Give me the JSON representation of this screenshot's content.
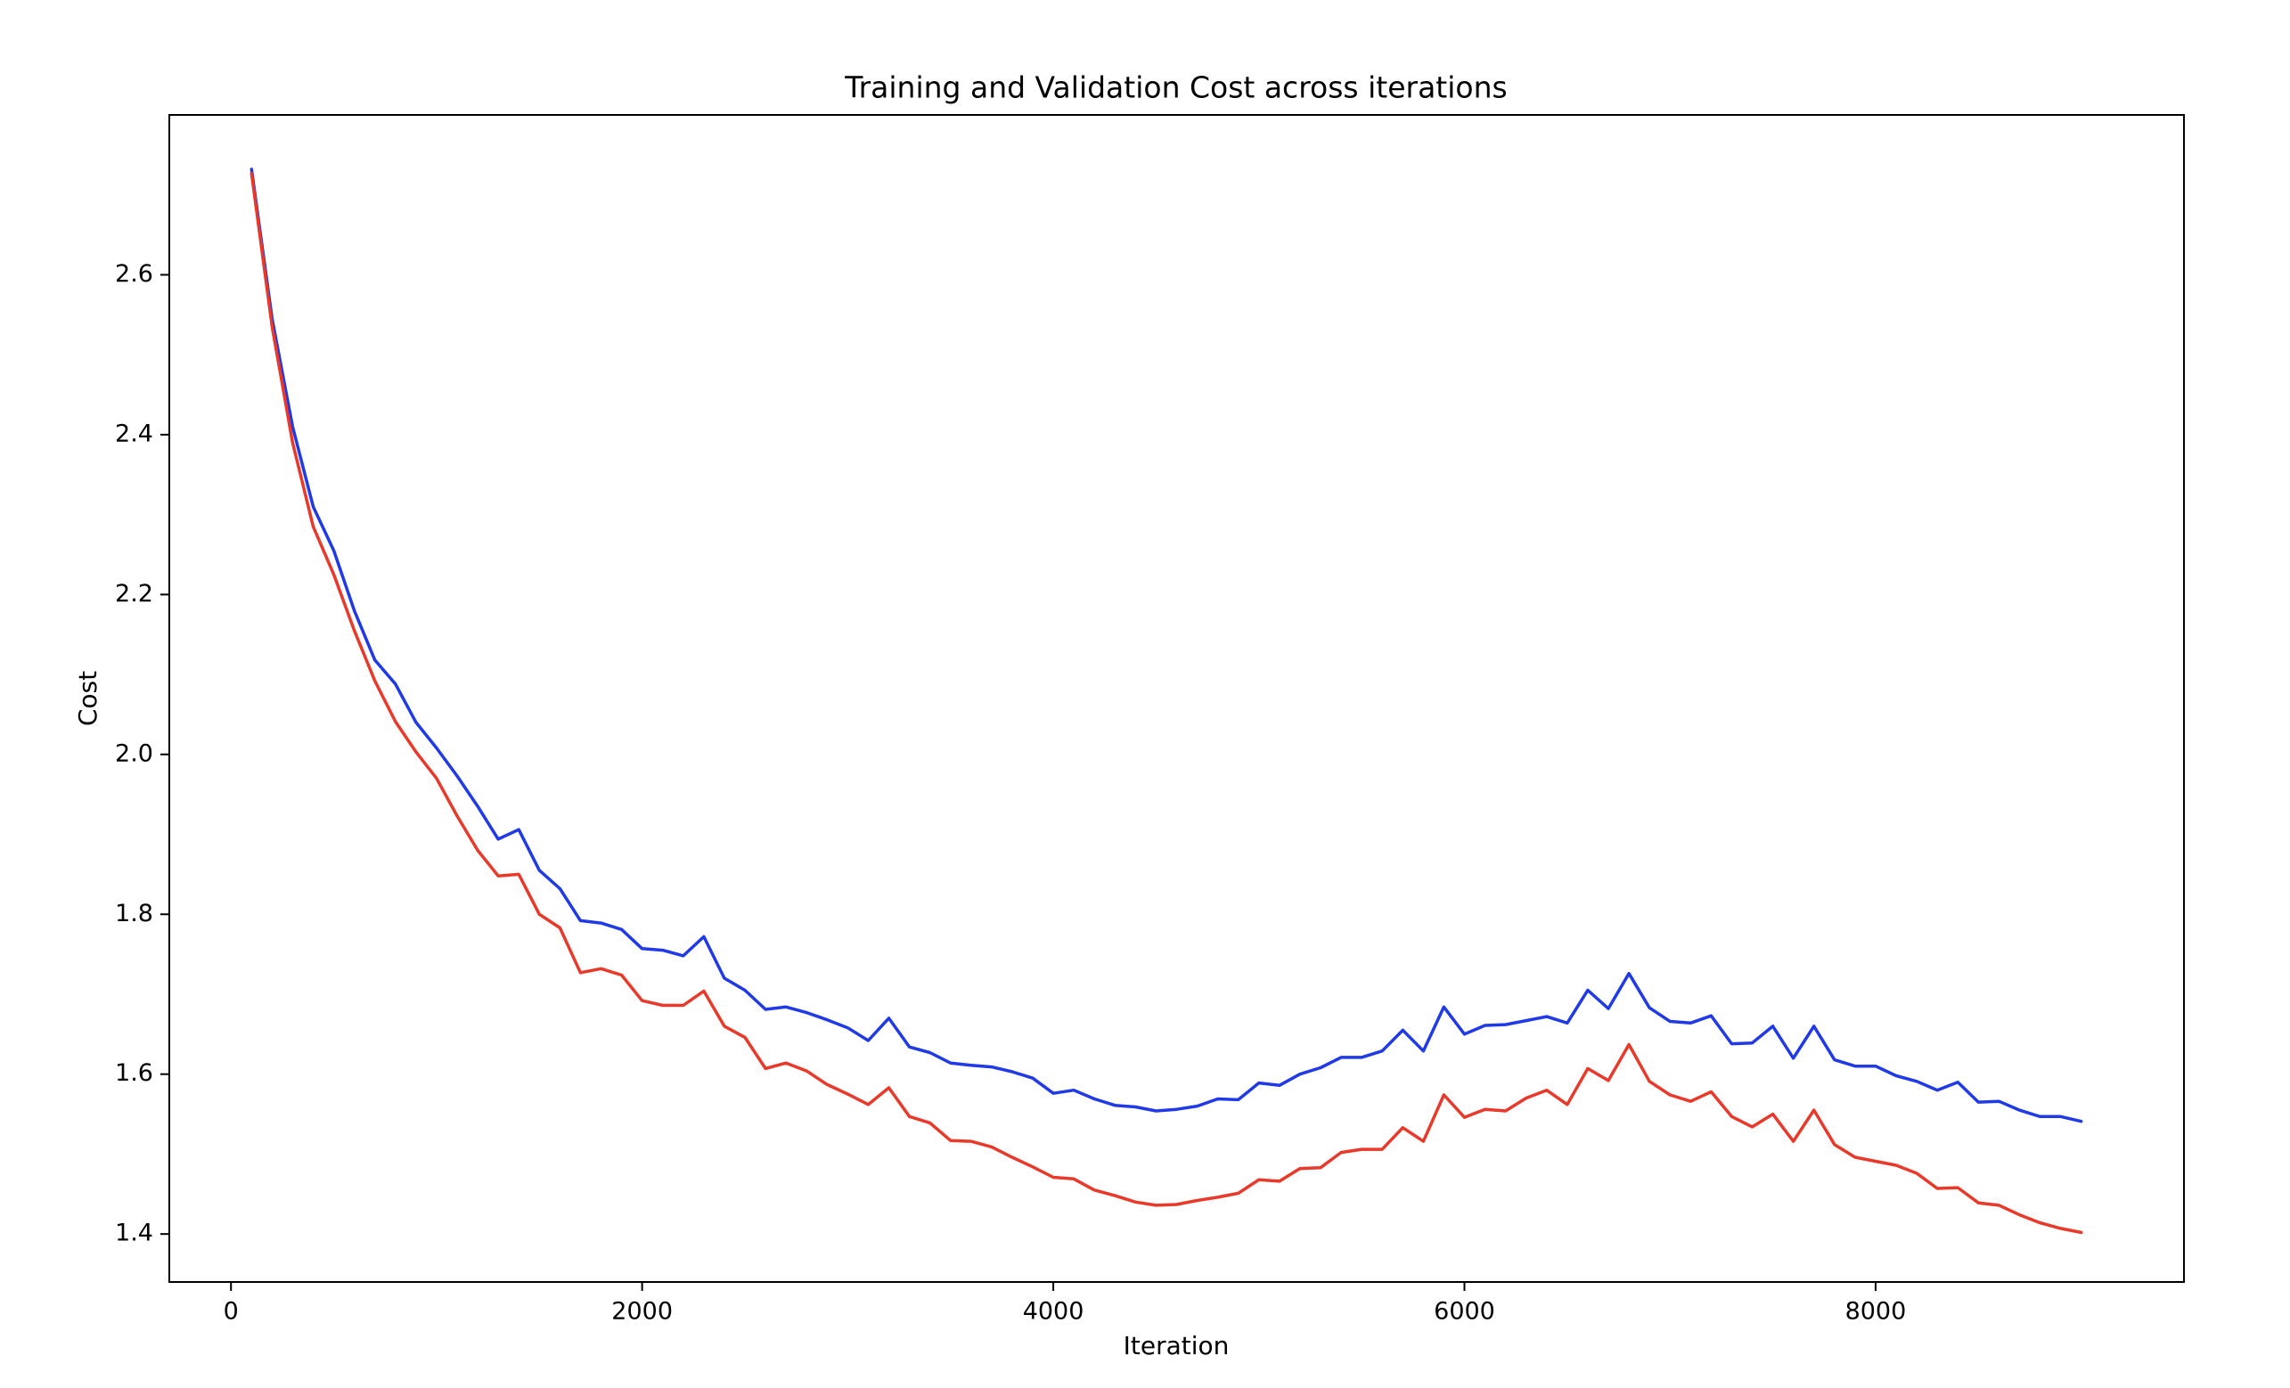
{
  "chart_data": {
    "type": "line",
    "title": "Training and Validation Cost across iterations",
    "xlabel": "Iteration",
    "ylabel": "Cost",
    "xlim": [
      -300,
      9500
    ],
    "ylim": [
      1.34,
      2.8
    ],
    "xticks": [
      0,
      2000,
      4000,
      6000,
      8000
    ],
    "yticks": [
      1.4,
      1.6,
      1.8,
      2.0,
      2.2,
      2.4,
      2.6
    ],
    "xtick_labels": [
      "0",
      "2000",
      "4000",
      "6000",
      "8000"
    ],
    "ytick_labels": [
      "1.4",
      "1.6",
      "1.8",
      "2.0",
      "2.2",
      "2.4",
      "2.6"
    ],
    "grid": false,
    "legend": false,
    "x": [
      100,
      200,
      300,
      400,
      500,
      600,
      700,
      800,
      900,
      1000,
      1100,
      1200,
      1300,
      1400,
      1500,
      1600,
      1700,
      1800,
      1900,
      2000,
      2100,
      2200,
      2300,
      2400,
      2500,
      2600,
      2700,
      2800,
      2900,
      3000,
      3100,
      3200,
      3300,
      3400,
      3500,
      3600,
      3700,
      3800,
      3900,
      4000,
      4100,
      4200,
      4300,
      4400,
      4500,
      4600,
      4700,
      4800,
      4900,
      5000,
      5100,
      5200,
      5300,
      5400,
      5500,
      5600,
      5700,
      5800,
      5900,
      6000,
      6100,
      6200,
      6300,
      6400,
      6500,
      6600,
      6700,
      6800,
      6900,
      7000,
      7100,
      7200,
      7300,
      7400,
      7500,
      7600,
      7700,
      7800,
      7900,
      8000,
      8100,
      8200,
      8300,
      8400,
      8500,
      8600,
      8700,
      8800,
      8900,
      9000
    ],
    "series": [
      {
        "color": "#1f3ae6",
        "values": [
          2.732,
          2.545,
          2.41,
          2.31,
          2.255,
          2.18,
          2.118,
          2.088,
          2.04,
          2.008,
          1.973,
          1.935,
          1.894,
          1.906,
          1.855,
          1.832,
          1.792,
          1.789,
          1.781,
          1.757,
          1.755,
          1.748,
          1.772,
          1.72,
          1.705,
          1.681,
          1.684,
          1.677,
          1.668,
          1.658,
          1.642,
          1.67,
          1.634,
          1.627,
          1.614,
          1.611,
          1.609,
          1.603,
          1.595,
          1.576,
          1.58,
          1.569,
          1.561,
          1.559,
          1.554,
          1.556,
          1.56,
          1.569,
          1.568,
          1.589,
          1.586,
          1.6,
          1.608,
          1.621,
          1.621,
          1.629,
          1.655,
          1.629,
          1.684,
          1.65,
          1.661,
          1.662,
          1.667,
          1.672,
          1.664,
          1.705,
          1.682,
          1.726,
          1.683,
          1.666,
          1.664,
          1.673,
          1.638,
          1.639,
          1.66,
          1.62,
          1.66,
          1.618,
          1.61,
          1.61,
          1.598,
          1.591,
          1.58,
          1.59,
          1.565,
          1.566,
          1.555,
          1.547,
          1.547,
          1.541
        ]
      },
      {
        "color": "#e8392a",
        "values": [
          2.727,
          2.535,
          2.39,
          2.285,
          2.225,
          2.155,
          2.092,
          2.041,
          2.003,
          1.97,
          1.923,
          1.88,
          1.848,
          1.85,
          1.8,
          1.783,
          1.727,
          1.732,
          1.724,
          1.692,
          1.686,
          1.686,
          1.704,
          1.66,
          1.646,
          1.607,
          1.614,
          1.604,
          1.587,
          1.575,
          1.562,
          1.583,
          1.547,
          1.539,
          1.517,
          1.516,
          1.509,
          1.496,
          1.484,
          1.471,
          1.469,
          1.455,
          1.448,
          1.44,
          1.436,
          1.437,
          1.442,
          1.446,
          1.451,
          1.468,
          1.466,
          1.482,
          1.483,
          1.502,
          1.506,
          1.506,
          1.533,
          1.516,
          1.574,
          1.546,
          1.556,
          1.554,
          1.57,
          1.58,
          1.562,
          1.607,
          1.592,
          1.637,
          1.591,
          1.574,
          1.566,
          1.578,
          1.547,
          1.534,
          1.55,
          1.516,
          1.555,
          1.512,
          1.496,
          1.491,
          1.486,
          1.476,
          1.457,
          1.458,
          1.439,
          1.436,
          1.424,
          1.414,
          1.407,
          1.402
        ]
      }
    ]
  }
}
